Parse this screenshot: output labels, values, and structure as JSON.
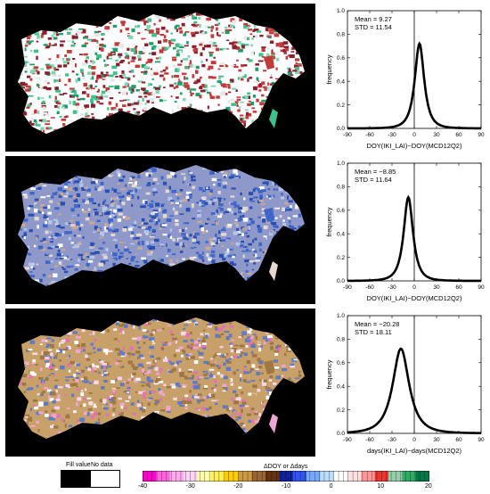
{
  "maps": [
    {
      "name": "panel-1-map",
      "palette": [
        "#1f9c6b",
        "#3fbf8a",
        "#7fd6b0",
        "#ffffff",
        "#c23a3a",
        "#8a1f2d",
        "#e6e6e6"
      ]
    },
    {
      "name": "panel-2-map",
      "palette": [
        "#ffffff",
        "#e7d8cf",
        "#c8a793",
        "#8f99c9",
        "#3f66c9",
        "#2a4fb3",
        "#b5c4e8"
      ]
    },
    {
      "name": "panel-3-map",
      "palette": [
        "#ffffff",
        "#f0a6d3",
        "#e670b8",
        "#c7a06a",
        "#9e7742",
        "#5f7ac4",
        "#f6d8ea"
      ]
    }
  ],
  "charts": [
    {
      "mean_label": "Mean = 9.27",
      "std_label": "STD = 11.54",
      "xlabel": "DOY(IKI_LAI)−DOY(MCD12Q2)",
      "ylabel": "frequency"
    },
    {
      "mean_label": "Mean = −8.85",
      "std_label": "STD = 11.64",
      "xlabel": "DOY(IKI_LAI)−DOY(MCD12Q2)",
      "ylabel": "frequency"
    },
    {
      "mean_label": "Mean = −20.28",
      "std_label": "STD = 18.11",
      "xlabel": "days(IKI_LAI)−days(MCD12Q2)",
      "ylabel": "frequency"
    }
  ],
  "chart_data": [
    {
      "type": "line",
      "title": "",
      "xlabel": "DOY(IKI_LAI)−DOY(MCD12Q2)",
      "ylabel": "frequency",
      "xlim": [
        -90,
        90
      ],
      "ylim": [
        0,
        1.0
      ],
      "xticks": [
        "-90",
        "-60",
        "-30",
        "0",
        "30",
        "60",
        "90"
      ],
      "yticks": [
        "0.0",
        "0.2",
        "0.4",
        "0.6",
        "0.8",
        "1.0"
      ],
      "series": [
        {
          "center": 7,
          "peak": 0.72,
          "width": 8
        }
      ],
      "vline": 0
    },
    {
      "type": "line",
      "title": "",
      "xlabel": "DOY(IKI_LAI)−DOY(MCD12Q2)",
      "ylabel": "frequency",
      "xlim": [
        -90,
        90
      ],
      "ylim": [
        0,
        1.0
      ],
      "xticks": [
        "-90",
        "-60",
        "-30",
        "0",
        "30",
        "60",
        "90"
      ],
      "yticks": [
        "0.0",
        "0.2",
        "0.4",
        "0.6",
        "0.8",
        "1.0"
      ],
      "series": [
        {
          "center": -8,
          "peak": 0.71,
          "width": 8
        }
      ],
      "vline": 0
    },
    {
      "type": "line",
      "title": "",
      "xlabel": "days(IKI_LAI)−days(MCD12Q2)",
      "ylabel": "frequency",
      "xlim": [
        -90,
        90
      ],
      "ylim": [
        0,
        1.0
      ],
      "xticks": [
        "-90",
        "-60",
        "-30",
        "0",
        "30",
        "60",
        "90"
      ],
      "yticks": [
        "0.0",
        "0.2",
        "0.4",
        "0.6",
        "0.8",
        "1.0"
      ],
      "series": [
        {
          "center": -18,
          "peak": 0.72,
          "width": 14
        }
      ],
      "vline": 0
    }
  ],
  "legend": {
    "fill_label": "Fill value",
    "nodata_label": "No data",
    "title": "ΔDOY  or  Δdays",
    "ticks": [
      "-40",
      "-30",
      "-20",
      "-10",
      "0",
      "10",
      "20"
    ],
    "colors": [
      "#ff00cc",
      "#ff66dd",
      "#ffaaee",
      "#ffd5f5",
      "#ffffaa",
      "#ffee55",
      "#ffcc00",
      "#cc9944",
      "#996633",
      "#663311",
      "#112299",
      "#3355ee",
      "#77aaff",
      "#bbddff",
      "#ffffff",
      "#ffe0e0",
      "#ff9999",
      "#ee3333",
      "#99ccaa",
      "#33aa66",
      "#007744"
    ]
  }
}
